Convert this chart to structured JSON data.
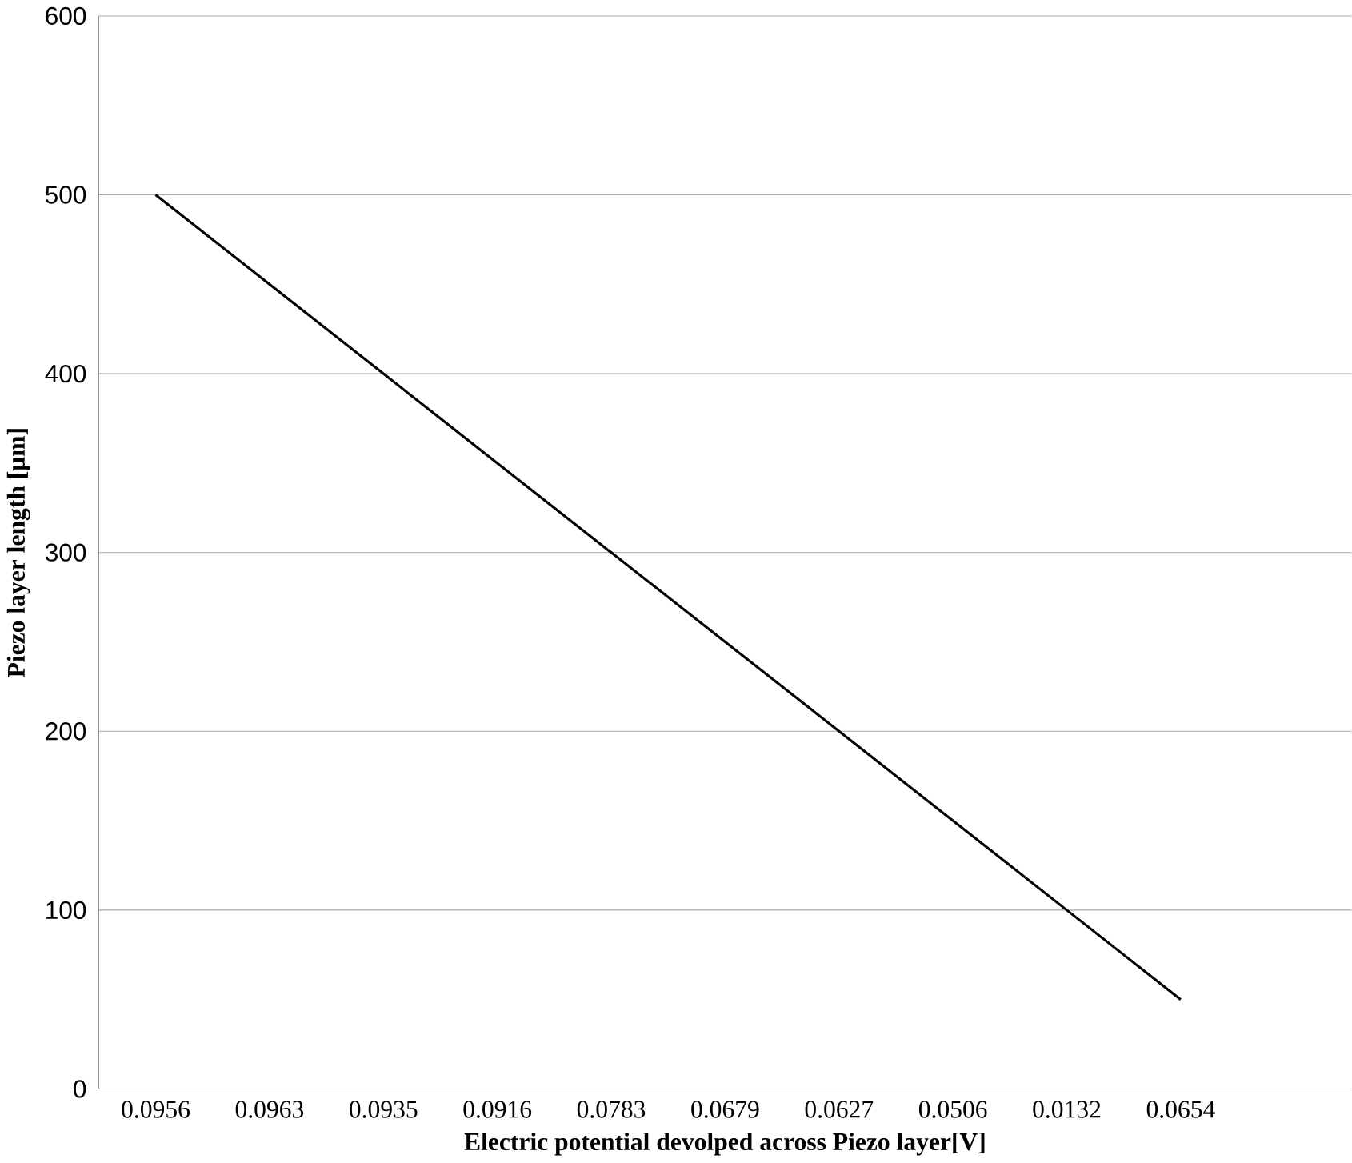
{
  "chart_data": {
    "type": "line",
    "xlabel": "Electric potential devolped across Piezo layer[V]",
    "ylabel": "Piezo layer length [μm]",
    "categories": [
      "0.0956",
      "0.0963",
      "0.0935",
      "0.0916",
      "0.0783",
      "0.0679",
      "0.0627",
      "0.0506",
      "0.0132",
      "0.0654",
      null
    ],
    "series": [
      {
        "color": "#000000",
        "values": [
          500,
          450,
          400,
          350,
          300,
          250,
          200,
          150,
          100,
          50,
          null
        ]
      }
    ],
    "ylim": [
      0,
      600
    ],
    "yticks": [
      0,
      100,
      200,
      300,
      400,
      500,
      600
    ],
    "grid": "y",
    "marker": "none",
    "line_style": "solid"
  }
}
